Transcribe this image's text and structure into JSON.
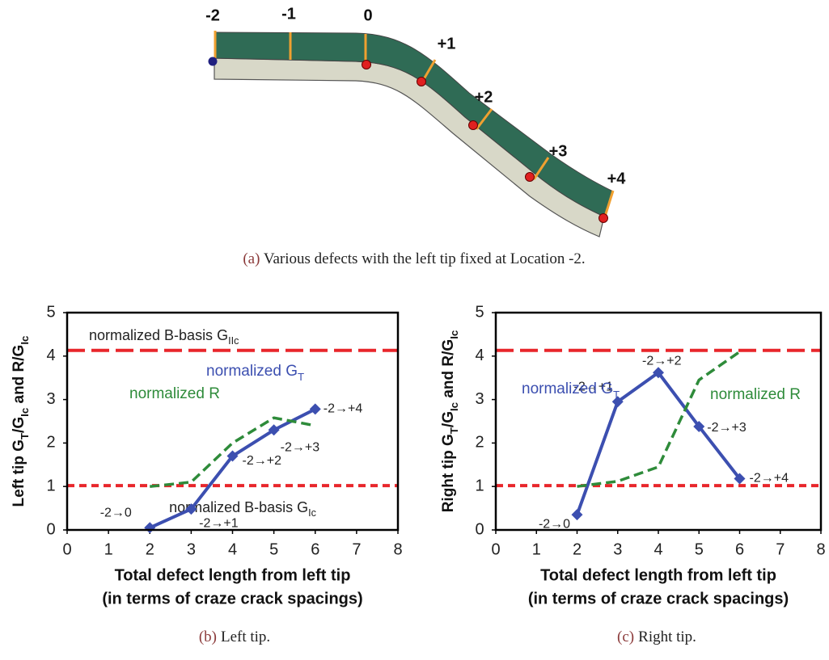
{
  "figure_a": {
    "locations": [
      "-2",
      "-1",
      "0",
      "+1",
      "+2",
      "+3",
      "+4"
    ],
    "caption_tag": "(a)",
    "caption": "Various defects with the left tip fixed at Location -2."
  },
  "chart_data": [
    {
      "type": "line",
      "caption_tag": "(b)",
      "caption": "Left tip.",
      "ylabel_parts": [
        "Left tip G",
        "T",
        "/G",
        "Ic",
        " and R/G",
        "Ic"
      ],
      "xlabel": [
        "Total defect length from left tip",
        "(in terms of craze crack spacings)"
      ],
      "xlim": [
        0,
        8
      ],
      "xticks": [
        0,
        1,
        2,
        3,
        4,
        5,
        6,
        7,
        8
      ],
      "ylim": [
        0,
        5
      ],
      "yticks": [
        0,
        1,
        2,
        3,
        4,
        5
      ],
      "reference_lines": [
        {
          "y": 4.13,
          "color": "#e8262b",
          "dash": "long",
          "label": "normalized B-basis G",
          "label_sub": "IIc"
        },
        {
          "y": 1.02,
          "color": "#e8262b",
          "dash": "short",
          "label": "normalized B-basis G",
          "label_sub": "Ic"
        }
      ],
      "x": [
        2,
        3,
        4,
        5,
        6
      ],
      "series": [
        {
          "name": "normalized G",
          "name_sub": "T",
          "color": "#3c4fb0",
          "dashed": false,
          "markers": true,
          "values": [
            0.05,
            0.48,
            1.7,
            2.3,
            2.78
          ],
          "point_labels": [
            "-2→0",
            "-2→+1",
            "-2→+2",
            "-2→+3",
            "-2→+4"
          ]
        },
        {
          "name": "normalized R",
          "color": "#2e8b3a",
          "dashed": true,
          "markers": false,
          "values": [
            1.0,
            1.1,
            2.0,
            2.58,
            2.4
          ]
        }
      ]
    },
    {
      "type": "line",
      "caption_tag": "(c)",
      "caption": "Right tip.",
      "ylabel_parts": [
        "Right tip G",
        "T",
        "/G",
        "Ic",
        " and R/G",
        "Ic"
      ],
      "xlabel": [
        "Total defect length from left tip",
        "(in terms of craze crack spacings)"
      ],
      "xlim": [
        0,
        8
      ],
      "xticks": [
        0,
        1,
        2,
        3,
        4,
        5,
        6,
        7,
        8
      ],
      "ylim": [
        0,
        5
      ],
      "yticks": [
        0,
        1,
        2,
        3,
        4,
        5
      ],
      "reference_lines": [
        {
          "y": 4.13,
          "color": "#e8262b",
          "dash": "long"
        },
        {
          "y": 1.02,
          "color": "#e8262b",
          "dash": "short"
        }
      ],
      "x": [
        2,
        3,
        4,
        5,
        6
      ],
      "series": [
        {
          "name": "normalized G",
          "name_sub": "T",
          "color": "#3c4fb0",
          "dashed": false,
          "markers": true,
          "values": [
            0.35,
            2.95,
            3.62,
            2.38,
            1.18
          ],
          "point_labels": [
            "-2→0",
            "-2→+1",
            "-2→+2",
            "-2→+3",
            "-2→+4"
          ]
        },
        {
          "name": "normalized R",
          "color": "#2e8b3a",
          "dashed": true,
          "markers": false,
          "values": [
            1.0,
            1.12,
            1.45,
            3.45,
            4.1
          ]
        }
      ]
    }
  ]
}
